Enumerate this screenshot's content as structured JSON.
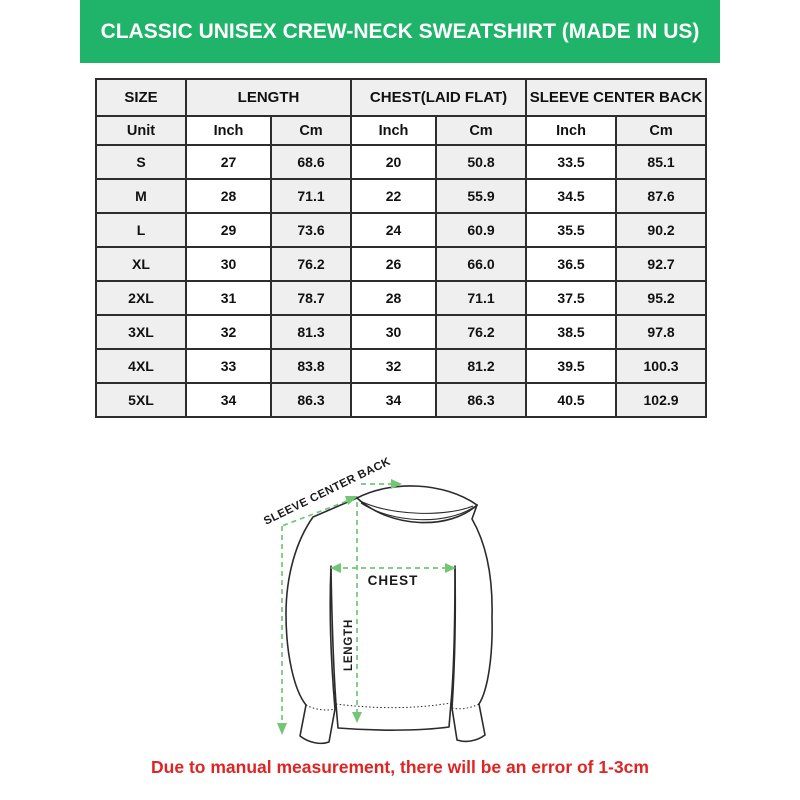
{
  "banner": {
    "title": "CLASSIC UNISEX CREW-NECK SWEATSHIRT (MADE IN US)",
    "bg_color": "#1fb469",
    "text_color": "#ffffff"
  },
  "table": {
    "group_headers": [
      {
        "label": "SIZE",
        "span": 1
      },
      {
        "label": "LENGTH",
        "span": 2
      },
      {
        "label": "CHEST(LAID FLAT)",
        "span": 2
      },
      {
        "label": "SLEEVE CENTER BACK",
        "span": 2
      }
    ],
    "unit_row": [
      "Unit",
      "Inch",
      "Cm",
      "Inch",
      "Cm",
      "Inch",
      "Cm"
    ],
    "rows": [
      [
        "S",
        "27",
        "68.6",
        "20",
        "50.8",
        "33.5",
        "85.1"
      ],
      [
        "M",
        "28",
        "71.1",
        "22",
        "55.9",
        "34.5",
        "87.6"
      ],
      [
        "L",
        "29",
        "73.6",
        "24",
        "60.9",
        "35.5",
        "90.2"
      ],
      [
        "XL",
        "30",
        "76.2",
        "26",
        "66.0",
        "36.5",
        "92.7"
      ],
      [
        "2XL",
        "31",
        "78.7",
        "28",
        "71.1",
        "37.5",
        "95.2"
      ],
      [
        "3XL",
        "32",
        "81.3",
        "30",
        "76.2",
        "38.5",
        "97.8"
      ],
      [
        "4XL",
        "33",
        "83.8",
        "32",
        "81.2",
        "39.5",
        "100.3"
      ],
      [
        "5XL",
        "34",
        "86.3",
        "34",
        "86.3",
        "40.5",
        "102.9"
      ]
    ],
    "shade_color": "#efefef",
    "border_color": "#2d2d2d"
  },
  "diagram": {
    "labels": {
      "sleeve_center_back": "SLEEVE CENTER BACK",
      "chest": "CHEST",
      "length": "LENGTH"
    },
    "measure_line_color": "#72c676",
    "outline_color": "#2b2b2b"
  },
  "footer": {
    "note": "Due to manual measurement, there will be an error of 1-3cm",
    "color": "#e02424"
  }
}
